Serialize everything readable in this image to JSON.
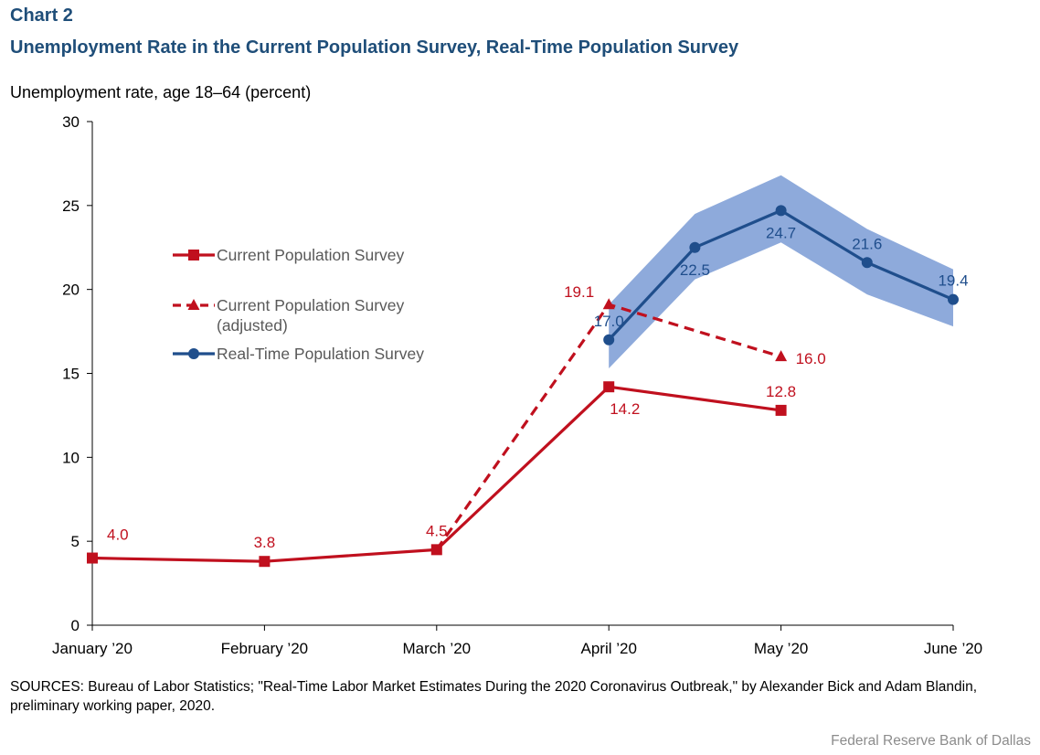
{
  "header": {
    "chart_number": "Chart 2",
    "title": "Unemployment Rate in the Current Population Survey, Real-Time Population Survey"
  },
  "footer": {
    "sources": "SOURCES: Bureau of Labor Statistics; \"Real-Time Labor Market Estimates During the 2020 Coronavirus Outbreak,\" by Alexander Bick and Adam Blandin, preliminary working paper, 2020.",
    "credit": "Federal Reserve Bank of Dallas"
  },
  "colors": {
    "cps": "#c0101e",
    "rps": "#1f4e8c",
    "band": "#8eaadb",
    "axis": "#000000"
  },
  "chart_data": {
    "type": "line",
    "ylabel": "Unemployment rate, age 18–64 (percent)",
    "ylim": [
      0,
      30
    ],
    "yticks": [
      0,
      5,
      10,
      15,
      20,
      25,
      30
    ],
    "x_positions": [
      0,
      1,
      2,
      3,
      3.5,
      4,
      4.5,
      5
    ],
    "tick_labels": [
      {
        "x": 0,
        "label": "January ’20"
      },
      {
        "x": 1,
        "label": "February ’20"
      },
      {
        "x": 2,
        "label": "March ’20"
      },
      {
        "x": 3,
        "label": "April ’20"
      },
      {
        "x": 4,
        "label": "May ’20"
      },
      {
        "x": 5,
        "label": "June ’20"
      }
    ],
    "legend_placement": "center-left",
    "grid": false,
    "series": [
      {
        "name": "Current Population Survey",
        "style": "solid",
        "marker": "square",
        "color_key": "cps",
        "points": [
          {
            "x": 0,
            "y": 4.0,
            "label": "4.0",
            "label_pos": "above-right"
          },
          {
            "x": 1,
            "y": 3.8,
            "label": "3.8",
            "label_pos": "above"
          },
          {
            "x": 2,
            "y": 4.5,
            "label": "4.5",
            "label_pos": "above"
          },
          {
            "x": 3,
            "y": 14.2,
            "label": "14.2",
            "label_pos": "below-right"
          },
          {
            "x": 4,
            "y": 12.8,
            "label": "12.8",
            "label_pos": "above"
          }
        ]
      },
      {
        "name": "Current Population Survey\n(adjusted)",
        "style": "dashed",
        "marker": "triangle",
        "color_key": "cps",
        "points": [
          {
            "x": 2,
            "y": 4.5
          },
          {
            "x": 3,
            "y": 19.1,
            "label": "19.1",
            "label_pos": "left"
          },
          {
            "x": 4,
            "y": 16.0,
            "label": "16.0",
            "label_pos": "right"
          }
        ]
      },
      {
        "name": "Real-Time Population Survey",
        "style": "solid",
        "marker": "circle",
        "color_key": "rps",
        "points": [
          {
            "x": 3,
            "y": 17.0,
            "label": "17.0",
            "label_pos": "above"
          },
          {
            "x": 3.5,
            "y": 22.5,
            "label": "22.5",
            "label_pos": "below"
          },
          {
            "x": 4,
            "y": 24.7,
            "label": "24.7",
            "label_pos": "below"
          },
          {
            "x": 4.5,
            "y": 21.6,
            "label": "21.6",
            "label_pos": "above"
          },
          {
            "x": 5,
            "y": 19.4,
            "label": "19.4",
            "label_pos": "above"
          }
        ],
        "band": {
          "x": [
            3,
            3.5,
            4,
            4.5,
            5
          ],
          "lower": [
            15.3,
            20.6,
            22.8,
            19.7,
            17.8
          ],
          "upper": [
            19.1,
            24.5,
            26.8,
            23.6,
            21.2
          ]
        }
      }
    ]
  }
}
